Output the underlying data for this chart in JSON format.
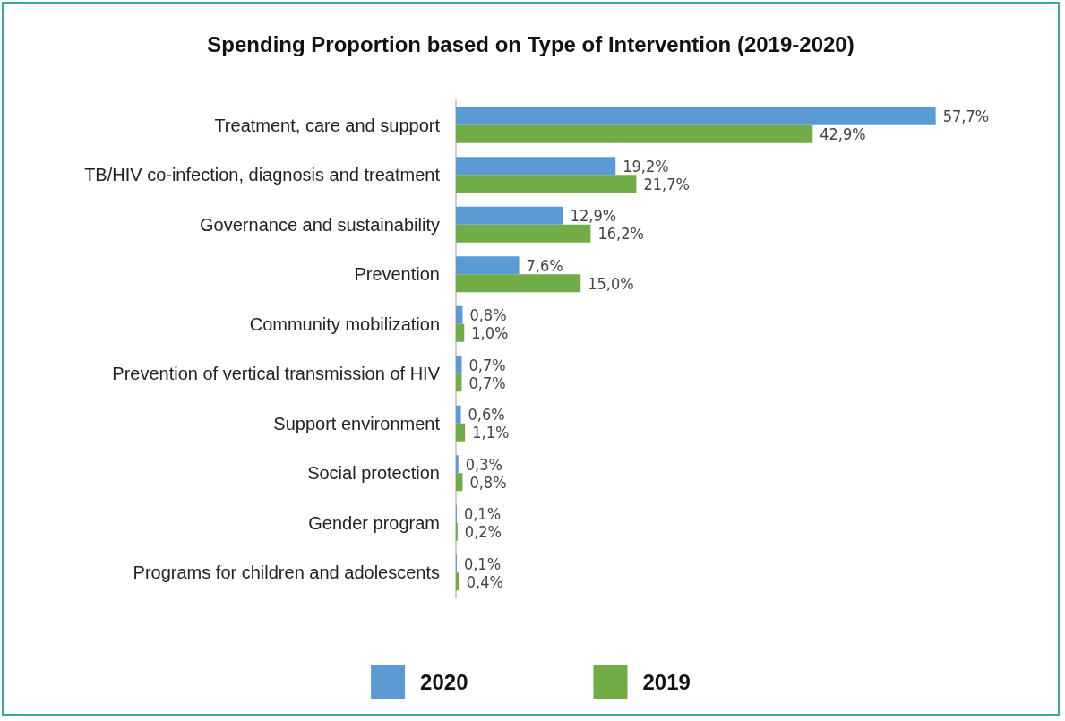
{
  "chart_data": {
    "type": "bar",
    "orientation": "horizontal",
    "title": "Spending Proportion based on Type of Intervention (2019-2020)",
    "categories": [
      "Treatment, care and support",
      "TB/HIV co-infection, diagnosis and treatment",
      "Governance and sustainability",
      "Prevention",
      "Community mobilization",
      "Prevention of vertical transmission of HIV",
      "Support environment",
      "Social protection",
      "Gender program",
      "Programs for children and adolescents"
    ],
    "series": [
      {
        "name": "2020",
        "color": "#5b9bd5",
        "values": [
          57.7,
          19.2,
          12.9,
          7.6,
          0.8,
          0.7,
          0.6,
          0.3,
          0.1,
          0.1
        ],
        "value_labels": [
          "57,7%",
          "19,2%",
          "12,9%",
          "7,6%",
          "0,8%",
          "0,7%",
          "0,6%",
          "0,3%",
          "0,1%",
          "0,1%"
        ]
      },
      {
        "name": "2019",
        "color": "#70ad47",
        "values": [
          42.9,
          21.7,
          16.2,
          15.0,
          1.0,
          0.7,
          1.1,
          0.8,
          0.2,
          0.4
        ],
        "value_labels": [
          "42,9%",
          "21,7%",
          "16,2%",
          "15,0%",
          "1,0%",
          "0,7%",
          "1,1%",
          "0,8%",
          "0,2%",
          "0,4%"
        ]
      }
    ],
    "legend": "bottom"
  }
}
